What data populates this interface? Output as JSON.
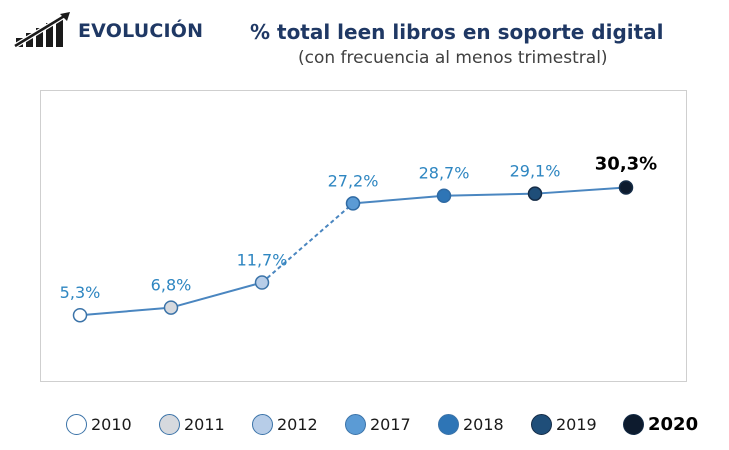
{
  "header": {
    "label": "EVOLUCIÓN",
    "icon": "rising-bar-chart-icon"
  },
  "chart_data": {
    "type": "line",
    "title": "% total leen libros en soporte digital",
    "subtitle": "(con frecuencia al menos trimestral)",
    "xlabel": "",
    "ylabel": "",
    "categories": [
      "2010",
      "2011",
      "2012",
      "2017",
      "2018",
      "2019",
      "2020"
    ],
    "values": [
      5.3,
      6.8,
      11.7,
      27.2,
      28.7,
      29.1,
      30.3
    ],
    "data_labels": [
      "5,3%",
      "6,8%",
      "11,7%",
      "27,2%",
      "28,7%",
      "29,1%",
      "30,3%"
    ],
    "dashed_segment": [
      "2012",
      "2017"
    ],
    "highlight": "2020",
    "marker_colors": [
      "#ffffff",
      "#d6d9de",
      "#b7cde8",
      "#5b9bd5",
      "#2e75b6",
      "#1f4e79",
      "#0d1b2e"
    ],
    "line_color": "#4a86c0",
    "label_color": "#2e86c1",
    "highlight_label_color": "#000000",
    "grid": false,
    "legend_position": "bottom"
  }
}
